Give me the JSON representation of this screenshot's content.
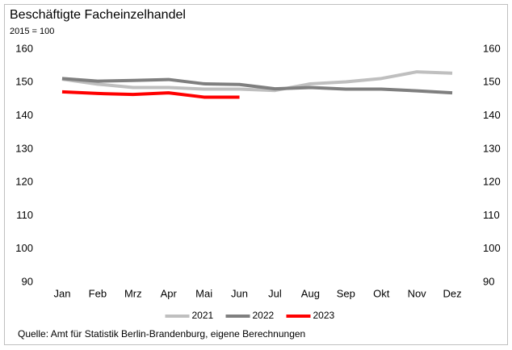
{
  "chart_data": {
    "type": "line",
    "title": "Beschäftigte Facheinzelhandel",
    "subtitle": "2015 = 100",
    "source": "Quelle: Amt für Statistik Berlin-Brandenburg,  eigene Berechnungen",
    "categories": [
      "Jan",
      "Feb",
      "Mrz",
      "Apr",
      "Mai",
      "Jun",
      "Jul",
      "Aug",
      "Sep",
      "Okt",
      "Nov",
      "Dez"
    ],
    "series": [
      {
        "name": "2021",
        "color": "#bfbfbf",
        "values": [
          151,
          149.5,
          148.5,
          148.5,
          148,
          148,
          147.6,
          149.6,
          150.2,
          151.2,
          153.2,
          152.8
        ]
      },
      {
        "name": "2022",
        "color": "#7f7f7f",
        "values": [
          151.2,
          150.4,
          150.6,
          150.9,
          149.6,
          149.4,
          148.1,
          148.5,
          148,
          148,
          147.5,
          146.9
        ]
      },
      {
        "name": "2023",
        "color": "#ff0000",
        "values": [
          147.2,
          146.7,
          146.4,
          146.9,
          145.6,
          145.6,
          null,
          null,
          null,
          null,
          null,
          null
        ]
      }
    ],
    "ylim": [
      90,
      160
    ],
    "yticks": [
      90,
      100,
      110,
      120,
      130,
      140,
      150,
      160
    ],
    "y2lim": [
      90,
      160
    ],
    "y2ticks": [
      90,
      100,
      110,
      120,
      130,
      140,
      150,
      160
    ],
    "legend": "bottom"
  }
}
